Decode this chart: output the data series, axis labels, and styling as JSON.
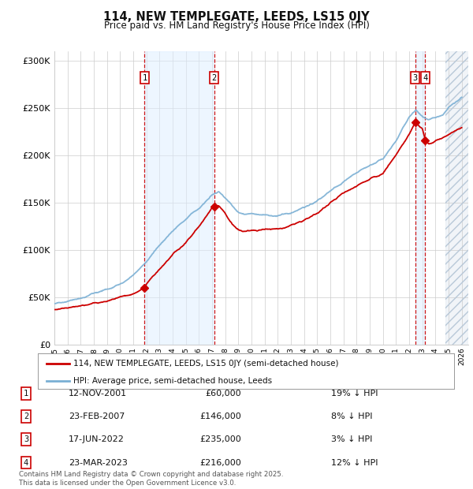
{
  "title": "114, NEW TEMPLEGATE, LEEDS, LS15 0JY",
  "subtitle": "Price paid vs. HM Land Registry's House Price Index (HPI)",
  "ylim": [
    0,
    310000
  ],
  "yticks": [
    0,
    50000,
    100000,
    150000,
    200000,
    250000,
    300000
  ],
  "ytick_labels": [
    "£0",
    "£50K",
    "£100K",
    "£150K",
    "£200K",
    "£250K",
    "£300K"
  ],
  "xlim_start": 1995.0,
  "xlim_end": 2026.5,
  "sale_dates": [
    2001.87,
    2007.15,
    2022.46,
    2023.23
  ],
  "sale_prices": [
    60000,
    146000,
    235000,
    216000
  ],
  "sale_labels": [
    "1",
    "2",
    "3",
    "4"
  ],
  "sale_color": "#cc0000",
  "hpi_color": "#7aafd4",
  "legend_sale_label": "114, NEW TEMPLEGATE, LEEDS, LS15 0JY (semi-detached house)",
  "legend_hpi_label": "HPI: Average price, semi-detached house, Leeds",
  "table_rows": [
    {
      "num": "1",
      "date": "12-NOV-2001",
      "price": "£60,000",
      "hpi": "19% ↓ HPI"
    },
    {
      "num": "2",
      "date": "23-FEB-2007",
      "price": "£146,000",
      "hpi": "8% ↓ HPI"
    },
    {
      "num": "3",
      "date": "17-JUN-2022",
      "price": "£235,000",
      "hpi": "3% ↓ HPI"
    },
    {
      "num": "4",
      "date": "23-MAR-2023",
      "price": "£216,000",
      "hpi": "12% ↓ HPI"
    }
  ],
  "footnote": "Contains HM Land Registry data © Crown copyright and database right 2025.\nThis data is licensed under the Open Government Licence v3.0.",
  "bg_color": "#ffffff",
  "grid_color": "#cccccc",
  "shade_color": "#ddeeff",
  "future_start": 2024.75,
  "hpi_anchors": [
    [
      1995.0,
      43000
    ],
    [
      1996.0,
      46000
    ],
    [
      1997.0,
      49000
    ],
    [
      1998.0,
      54000
    ],
    [
      1999.0,
      58000
    ],
    [
      2000.0,
      64000
    ],
    [
      2001.0,
      73000
    ],
    [
      2002.0,
      88000
    ],
    [
      2003.0,
      105000
    ],
    [
      2004.0,
      120000
    ],
    [
      2005.0,
      133000
    ],
    [
      2006.0,
      145000
    ],
    [
      2007.0,
      158000
    ],
    [
      2007.5,
      162000
    ],
    [
      2008.0,
      155000
    ],
    [
      2008.5,
      148000
    ],
    [
      2009.0,
      140000
    ],
    [
      2009.5,
      138000
    ],
    [
      2010.0,
      138000
    ],
    [
      2011.0,
      137000
    ],
    [
      2012.0,
      136000
    ],
    [
      2013.0,
      139000
    ],
    [
      2014.0,
      145000
    ],
    [
      2015.0,
      152000
    ],
    [
      2016.0,
      162000
    ],
    [
      2017.0,
      172000
    ],
    [
      2018.0,
      182000
    ],
    [
      2019.0,
      189000
    ],
    [
      2020.0,
      196000
    ],
    [
      2021.0,
      216000
    ],
    [
      2022.0,
      240000
    ],
    [
      2022.5,
      248000
    ],
    [
      2023.0,
      242000
    ],
    [
      2023.5,
      238000
    ],
    [
      2024.0,
      240000
    ],
    [
      2024.5,
      243000
    ],
    [
      2025.0,
      250000
    ],
    [
      2026.0,
      262000
    ]
  ],
  "price_anchors": [
    [
      1995.0,
      37000
    ],
    [
      1996.0,
      39000
    ],
    [
      1997.0,
      41000
    ],
    [
      1998.0,
      44000
    ],
    [
      1999.0,
      46000
    ],
    [
      2000.0,
      50000
    ],
    [
      2001.0,
      54000
    ],
    [
      2001.87,
      60000
    ],
    [
      2002.0,
      64000
    ],
    [
      2003.0,
      80000
    ],
    [
      2004.0,
      95000
    ],
    [
      2005.0,
      108000
    ],
    [
      2006.0,
      125000
    ],
    [
      2007.0,
      144000
    ],
    [
      2007.15,
      146000
    ],
    [
      2007.5,
      148000
    ],
    [
      2008.0,
      138000
    ],
    [
      2008.5,
      128000
    ],
    [
      2009.0,
      122000
    ],
    [
      2009.5,
      120000
    ],
    [
      2010.0,
      120000
    ],
    [
      2011.0,
      122000
    ],
    [
      2012.0,
      122000
    ],
    [
      2013.0,
      126000
    ],
    [
      2014.0,
      131000
    ],
    [
      2015.0,
      139000
    ],
    [
      2016.0,
      150000
    ],
    [
      2017.0,
      160000
    ],
    [
      2018.0,
      168000
    ],
    [
      2019.0,
      175000
    ],
    [
      2020.0,
      181000
    ],
    [
      2021.0,
      200000
    ],
    [
      2022.0,
      222000
    ],
    [
      2022.46,
      235000
    ],
    [
      2023.0,
      228000
    ],
    [
      2023.23,
      216000
    ],
    [
      2023.5,
      212000
    ],
    [
      2024.0,
      215000
    ],
    [
      2024.5,
      218000
    ],
    [
      2025.0,
      222000
    ],
    [
      2026.0,
      230000
    ]
  ]
}
